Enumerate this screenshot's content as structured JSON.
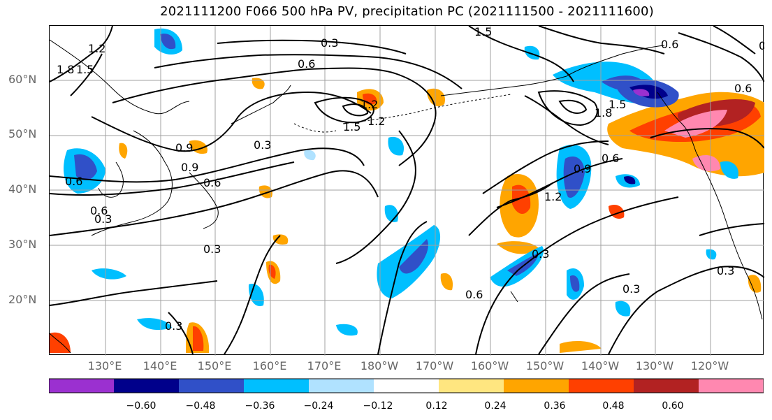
{
  "title": "2021111200 F066 500 hPa PV, precipitation PC (2021111500 - 2021111600)",
  "lat_labels": [
    "60°N",
    "50°N",
    "40°N",
    "30°N",
    "20°N"
  ],
  "lon_labels": [
    "130°E",
    "140°E",
    "150°E",
    "160°E",
    "170°E",
    "180°W",
    "170°W",
    "160°W",
    "150°W",
    "140°W",
    "130°W",
    "120°W"
  ],
  "contour_labels": [
    "1.2",
    "1.8",
    "1.5",
    "0.3",
    "0.6",
    "1.5",
    "0.6",
    "1.2",
    "1.5",
    "1.2",
    "0.3",
    "0.6",
    "0.9",
    "0.6",
    "0.9",
    "0.3",
    "0.3",
    "0.3",
    "0.6",
    "0.3",
    "0.9",
    "1.2",
    "0.6",
    "0.6",
    "0.3",
    "1.5",
    "0.3",
    "0.6",
    "0.9",
    "1.8"
  ],
  "colorbar": {
    "colors": [
      "#9b30d0",
      "#00008b",
      "#3050c8",
      "#00bfff",
      "#b0e2ff",
      "#ffffff",
      "#ffe680",
      "#ffa500",
      "#ff4000",
      "#b22222",
      "#ff88b0"
    ],
    "tick_labels": [
      "−0.60",
      "−0.48",
      "−0.36",
      "−0.24",
      "−0.12",
      "0.12",
      "0.24",
      "0.36",
      "0.48",
      "0.60"
    ]
  }
}
